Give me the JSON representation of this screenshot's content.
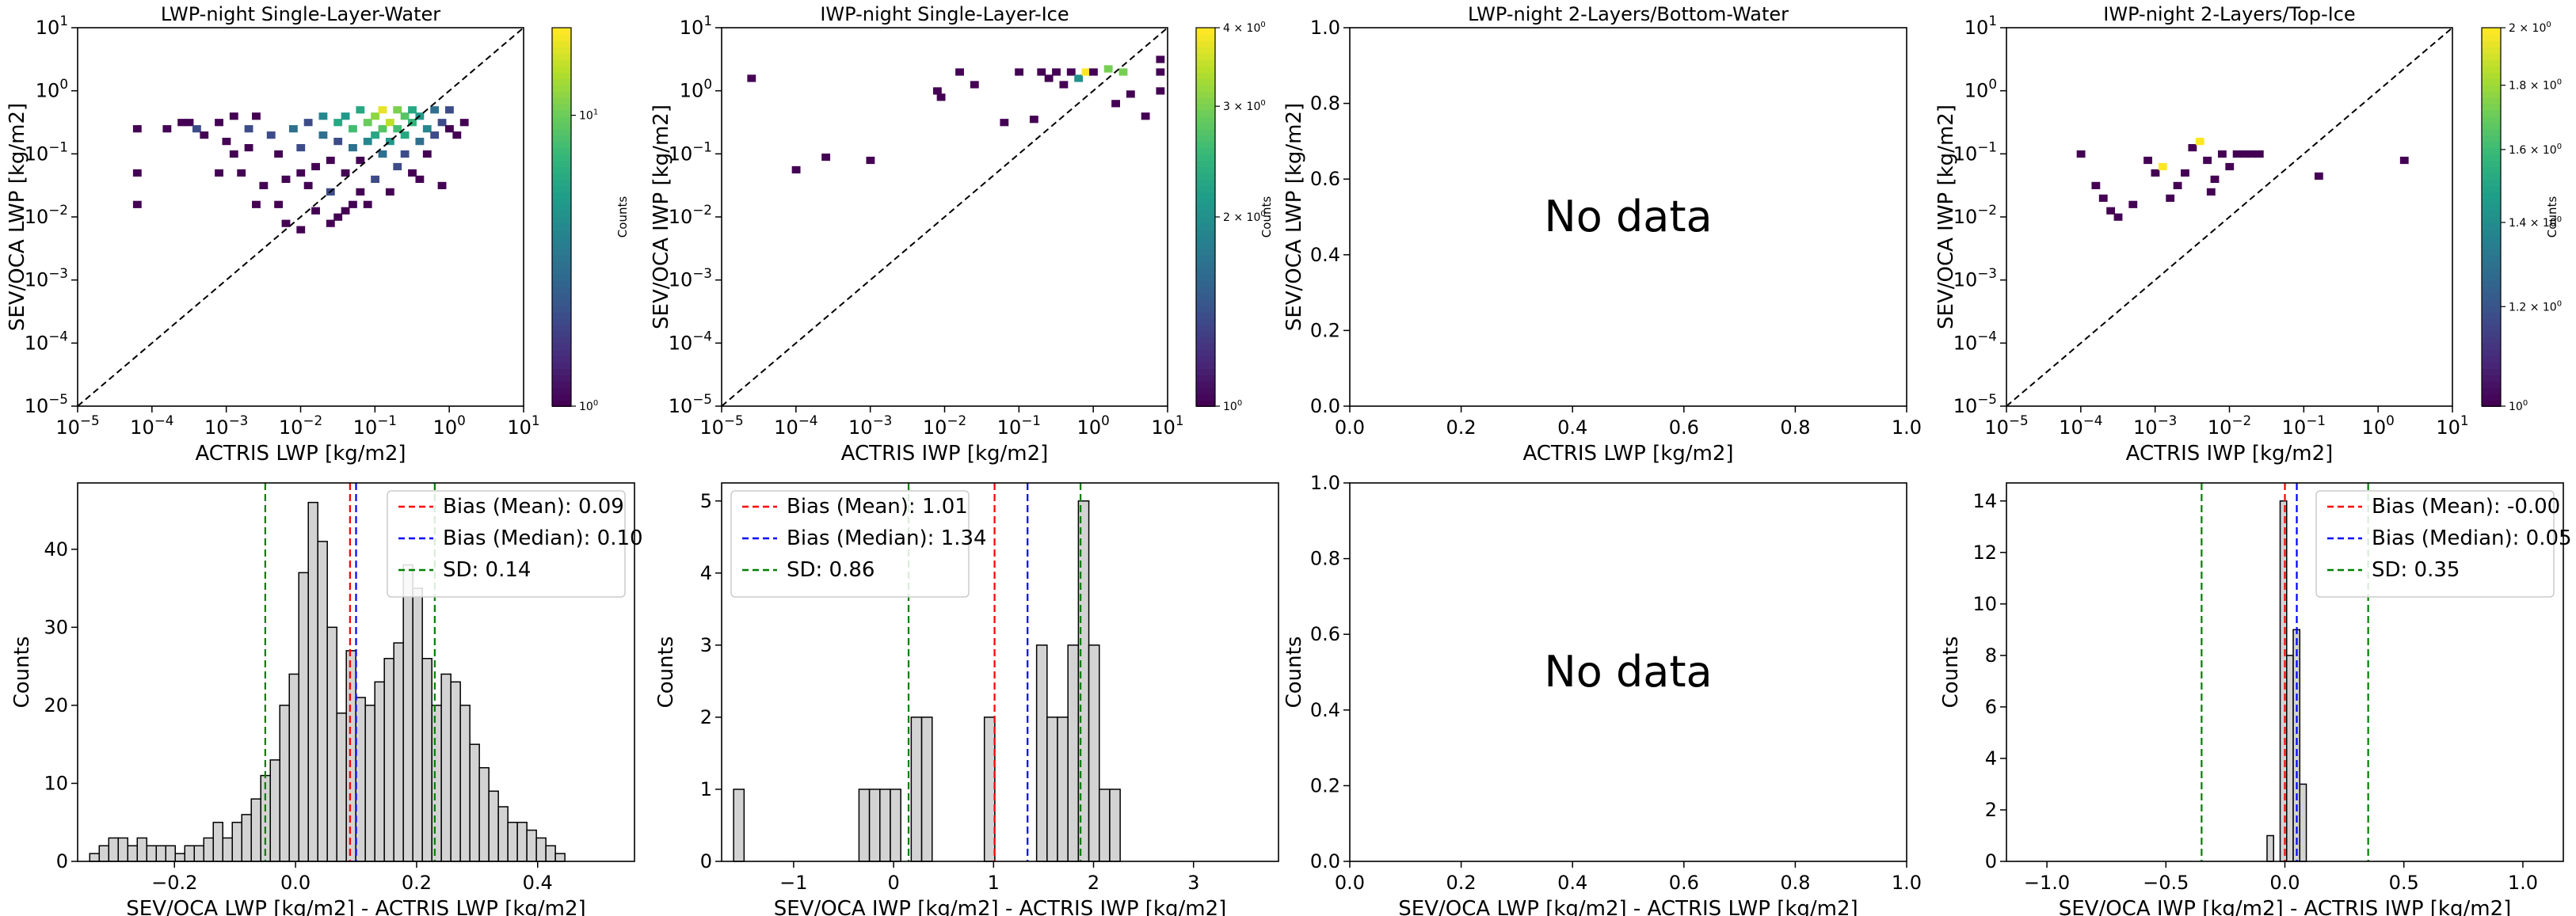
{
  "chart_data": [
    {
      "id": "p1",
      "type": "heatmap",
      "title": "LWP-night Single-Layer-Water",
      "xlabel": "ACTRIS LWP [kg/m2]",
      "ylabel": "SEV/OCA LWP [kg/m2]",
      "xscale": "log",
      "yscale": "log",
      "xlim": [
        1e-05,
        10
      ],
      "ylim": [
        1e-05,
        10
      ],
      "xticks": [
        "10^-5",
        "10^-4",
        "10^-3",
        "10^-2",
        "10^-1",
        "10^0",
        "10^1"
      ],
      "yticks": [
        "10^-5",
        "10^-4",
        "10^-3",
        "10^-2",
        "10^-1",
        "10^0",
        "10^1"
      ],
      "diagonal": true,
      "colorbar": {
        "label": "Counts",
        "scale": "log",
        "ticks": [
          "10^0",
          "10^1"
        ],
        "range": [
          1,
          20
        ]
      },
      "cells": [
        [
          -4.2,
          -0.6,
          1
        ],
        [
          -4.2,
          -1.8,
          1
        ],
        [
          -4.2,
          -1.3,
          1
        ],
        [
          -3.8,
          -0.6,
          1
        ],
        [
          -3.6,
          -0.5,
          1
        ],
        [
          -3.5,
          -0.5,
          1
        ],
        [
          -3.4,
          -0.6,
          2
        ],
        [
          -3.3,
          -0.7,
          1
        ],
        [
          -3.1,
          -1.3,
          1
        ],
        [
          -3,
          -0.8,
          1
        ],
        [
          -2.9,
          -1.0,
          1
        ],
        [
          -2.8,
          -1.3,
          1
        ],
        [
          -2.7,
          -0.9,
          1
        ],
        [
          -2.7,
          -0.6,
          2
        ],
        [
          -2.6,
          -1.8,
          1
        ],
        [
          -2.5,
          -1.5,
          1
        ],
        [
          -2.4,
          -0.7,
          2
        ],
        [
          -2.3,
          -1.0,
          1
        ],
        [
          -2.3,
          -1.8,
          1
        ],
        [
          -2.2,
          -1.4,
          1
        ],
        [
          -2.1,
          -0.6,
          3
        ],
        [
          -2,
          -0.9,
          2
        ],
        [
          -2,
          -2.2,
          1
        ],
        [
          -1.9,
          -1.5,
          1
        ],
        [
          -1.9,
          -0.5,
          2
        ],
        [
          -1.8,
          -1.2,
          1
        ],
        [
          -1.8,
          -1.9,
          1
        ],
        [
          -1.7,
          -0.4,
          4
        ],
        [
          -1.7,
          -0.7,
          3
        ],
        [
          -1.6,
          -1.1,
          1
        ],
        [
          -1.6,
          -1.6,
          2
        ],
        [
          -1.5,
          -0.5,
          6
        ],
        [
          -1.5,
          -0.8,
          2
        ],
        [
          -1.5,
          -2.0,
          1
        ],
        [
          -1.4,
          -0.4,
          5
        ],
        [
          -1.4,
          -1.3,
          1
        ],
        [
          -1.3,
          -0.6,
          8
        ],
        [
          -1.3,
          -0.9,
          3
        ],
        [
          -1.3,
          -1.8,
          1
        ],
        [
          -1.2,
          -0.3,
          6
        ],
        [
          -1.2,
          -1.1,
          1
        ],
        [
          -1.2,
          -1.6,
          1
        ],
        [
          -1.1,
          -0.5,
          10
        ],
        [
          -1.1,
          -0.8,
          4
        ],
        [
          -1.0,
          -0.4,
          12
        ],
        [
          -1.0,
          -0.7,
          6
        ],
        [
          -1.0,
          -1.4,
          2
        ],
        [
          -0.9,
          -0.3,
          18
        ],
        [
          -0.9,
          -0.6,
          9
        ],
        [
          -0.9,
          -1.0,
          3
        ],
        [
          -0.8,
          -0.5,
          15
        ],
        [
          -0.8,
          -0.8,
          5
        ],
        [
          -0.8,
          -1.6,
          1
        ],
        [
          -0.7,
          -0.3,
          11
        ],
        [
          -0.7,
          -0.6,
          8
        ],
        [
          -0.7,
          -1.2,
          2
        ],
        [
          -0.6,
          -0.4,
          9
        ],
        [
          -0.6,
          -0.7,
          6
        ],
        [
          -0.6,
          -1.0,
          2
        ],
        [
          -0.5,
          -0.3,
          6
        ],
        [
          -0.5,
          -0.5,
          7
        ],
        [
          -0.5,
          -1.3,
          1
        ],
        [
          -0.4,
          -0.4,
          5
        ],
        [
          -0.4,
          -0.8,
          3
        ],
        [
          -0.3,
          -0.6,
          4
        ],
        [
          -0.3,
          -1.0,
          1
        ],
        [
          -0.2,
          -0.3,
          3
        ],
        [
          -0.2,
          -0.7,
          2
        ],
        [
          -0.1,
          -0.5,
          2
        ],
        [
          -0.1,
          -1.5,
          1
        ],
        [
          0.0,
          -0.6,
          1
        ],
        [
          0.0,
          -0.3,
          2
        ],
        [
          0.1,
          -0.7,
          1
        ],
        [
          0.2,
          -0.5,
          1
        ],
        [
          -2.0,
          -1.3,
          1
        ],
        [
          -2.6,
          -0.4,
          1
        ],
        [
          -1.6,
          -2.1,
          1
        ],
        [
          -1.1,
          -1.8,
          1
        ],
        [
          -0.4,
          -1.4,
          1
        ],
        [
          -3.1,
          -0.5,
          1
        ],
        [
          -2.9,
          -0.4,
          1
        ],
        [
          -1.4,
          -1.9,
          1
        ],
        [
          -2.2,
          -2.1,
          1
        ]
      ]
    },
    {
      "id": "p2",
      "type": "heatmap",
      "title": "IWP-night Single-Layer-Ice",
      "xlabel": "ACTRIS IWP [kg/m2]",
      "ylabel": "SEV/OCA IWP [kg/m2]",
      "xscale": "log",
      "yscale": "log",
      "xlim": [
        1e-05,
        10
      ],
      "ylim": [
        1e-05,
        10
      ],
      "xticks": [
        "10^-5",
        "10^-4",
        "10^-3",
        "10^-2",
        "10^-1",
        "10^0",
        "10^1"
      ],
      "yticks": [
        "10^-5",
        "10^-4",
        "10^-3",
        "10^-2",
        "10^-1",
        "10^0",
        "10^1"
      ],
      "diagonal": true,
      "colorbar": {
        "label": "Counts",
        "scale": "log",
        "ticks": [
          "10^0",
          "2 × 10^0",
          "3 × 10^0",
          "4 × 10^0"
        ],
        "range": [
          1,
          4
        ]
      },
      "cells": [
        [
          -4.6,
          0.2,
          1
        ],
        [
          -4.0,
          -1.25,
          1
        ],
        [
          -3.6,
          -1.05,
          1
        ],
        [
          -3.0,
          -1.1,
          1
        ],
        [
          -2.1,
          0.0,
          1
        ],
        [
          -1.8,
          0.3,
          1
        ],
        [
          -1.6,
          0.1,
          1
        ],
        [
          -1.2,
          -0.5,
          1
        ],
        [
          -1.0,
          0.3,
          1
        ],
        [
          -0.8,
          -0.45,
          1
        ],
        [
          -0.7,
          0.3,
          1
        ],
        [
          -0.6,
          0.2,
          1
        ],
        [
          -0.5,
          0.3,
          1
        ],
        [
          -0.4,
          0.1,
          1
        ],
        [
          -0.3,
          0.3,
          1
        ],
        [
          -0.2,
          0.2,
          2
        ],
        [
          -0.1,
          0.3,
          4
        ],
        [
          0.0,
          0.3,
          1
        ],
        [
          0.2,
          0.35,
          3
        ],
        [
          0.3,
          -0.2,
          1
        ],
        [
          0.4,
          0.3,
          3
        ],
        [
          0.5,
          -0.05,
          1
        ],
        [
          0.7,
          -0.4,
          1
        ],
        [
          0.9,
          0.3,
          1
        ],
        [
          0.9,
          0.5,
          1
        ],
        [
          0.9,
          0.0,
          1
        ],
        [
          -2.05,
          -0.1,
          1
        ]
      ]
    },
    {
      "id": "p3",
      "type": "empty",
      "title": "LWP-night 2-Layers/Bottom-Water",
      "xlabel": "ACTRIS LWP [kg/m2]",
      "ylabel": "SEV/OCA LWP [kg/m2]",
      "xlim": [
        0,
        1
      ],
      "ylim": [
        0,
        1
      ],
      "xticks": [
        "0.0",
        "0.2",
        "0.4",
        "0.6",
        "0.8",
        "1.0"
      ],
      "yticks": [
        "0.0",
        "0.2",
        "0.4",
        "0.6",
        "0.8",
        "1.0"
      ],
      "message": "No data"
    },
    {
      "id": "p4",
      "type": "heatmap",
      "title": "IWP-night 2-Layers/Top-Ice",
      "xlabel": "ACTRIS IWP [kg/m2]",
      "ylabel": "SEV/OCA IWP [kg/m2]",
      "xscale": "log",
      "yscale": "log",
      "xlim": [
        1e-05,
        10
      ],
      "ylim": [
        1e-05,
        10
      ],
      "xticks": [
        "10^-5",
        "10^-4",
        "10^-3",
        "10^-2",
        "10^-1",
        "10^0",
        "10^1"
      ],
      "yticks": [
        "10^-5",
        "10^-4",
        "10^-3",
        "10^-2",
        "10^-1",
        "10^0",
        "10^1"
      ],
      "diagonal": true,
      "colorbar": {
        "label": "Counts",
        "scale": "log",
        "ticks": [
          "10^0",
          "1.2 × 10^0",
          "1.4 × 10^0",
          "1.6 × 10^0",
          "1.8 × 10^0",
          "2 × 10^0"
        ],
        "range": [
          1,
          2
        ]
      },
      "cells": [
        [
          -4.0,
          -1.0,
          1
        ],
        [
          -3.8,
          -1.5,
          1
        ],
        [
          -3.7,
          -1.7,
          1
        ],
        [
          -3.6,
          -1.9,
          1
        ],
        [
          -3.5,
          -2.0,
          1
        ],
        [
          -3.3,
          -1.8,
          1
        ],
        [
          -3.1,
          -1.1,
          1
        ],
        [
          -3.0,
          -1.3,
          1
        ],
        [
          -2.9,
          -1.2,
          2
        ],
        [
          -2.8,
          -1.7,
          1
        ],
        [
          -2.7,
          -1.5,
          1
        ],
        [
          -2.6,
          -1.3,
          1
        ],
        [
          -2.5,
          -0.9,
          1
        ],
        [
          -2.4,
          -0.8,
          2
        ],
        [
          -2.3,
          -1.1,
          1
        ],
        [
          -2.2,
          -1.4,
          1
        ],
        [
          -2.1,
          -1.0,
          1
        ],
        [
          -2.0,
          -1.2,
          1
        ],
        [
          -1.9,
          -1.0,
          1
        ],
        [
          -1.8,
          -1.0,
          1
        ],
        [
          -1.7,
          -1.0,
          1
        ],
        [
          -1.6,
          -1.0,
          1
        ],
        [
          -0.8,
          -1.35,
          1
        ],
        [
          0.35,
          -1.1,
          1
        ],
        [
          -2.25,
          -1.6,
          1
        ]
      ]
    },
    {
      "id": "p5",
      "type": "bar",
      "xlabel": "SEV/OCA LWP [kg/m2] - ACTRIS LWP [kg/m2]",
      "ylabel": "Counts",
      "xlim": [
        -0.36,
        0.56
      ],
      "ylim": [
        0,
        48.5
      ],
      "xticks": [
        -0.2,
        0.0,
        0.2,
        0.4
      ],
      "yticks": [
        0,
        10,
        20,
        30,
        40
      ],
      "bin_start": -0.34,
      "bin_width": 0.0157,
      "values": [
        1,
        2,
        3,
        3,
        2,
        3,
        2,
        2,
        2,
        1,
        2,
        2,
        3,
        5,
        3,
        5,
        6,
        8,
        11,
        13,
        20,
        24,
        37,
        46,
        41,
        30,
        19,
        27,
        21,
        20,
        23,
        26,
        28,
        38,
        35,
        26,
        20,
        24,
        23,
        20,
        15,
        12,
        9,
        7,
        5,
        5,
        4,
        3,
        2,
        1,
        0,
        0,
        0,
        0,
        0,
        0
      ],
      "lines": [
        {
          "label": "Bias (Mean): 0.09",
          "value": 0.09,
          "color": "#ff0000"
        },
        {
          "label": "Bias (Median): 0.10",
          "value": 0.1,
          "color": "#0000ff"
        },
        {
          "label": "SD: 0.14",
          "value": -0.05,
          "color": "#008000"
        },
        {
          "value": 0.23,
          "color": "#008000"
        }
      ],
      "legend": "top-right"
    },
    {
      "id": "p6",
      "type": "bar",
      "xlabel": "SEV/OCA IWP [kg/m2] - ACTRIS IWP [kg/m2]",
      "ylabel": "Counts",
      "xlim": [
        -1.72,
        3.85
      ],
      "ylim": [
        0,
        5.25
      ],
      "xticks": [
        -1,
        0,
        1,
        2,
        3
      ],
      "yticks": [
        0,
        1,
        2,
        3,
        4,
        5
      ],
      "bin_start": -1.6,
      "bin_width": 0.1045,
      "values": [
        1,
        0,
        0,
        0,
        0,
        0,
        0,
        0,
        0,
        0,
        0,
        0,
        1,
        1,
        1,
        1,
        0,
        2,
        2,
        0,
        0,
        0,
        0,
        0,
        2,
        0,
        0,
        0,
        0,
        3,
        2,
        2,
        3,
        5,
        3,
        1,
        1,
        0,
        0,
        0,
        0,
        0,
        0,
        0,
        0,
        0,
        0,
        0,
        0,
        0,
        0,
        0
      ],
      "lines": [
        {
          "label": "Bias (Mean): 1.01",
          "value": 1.01,
          "color": "#ff0000"
        },
        {
          "label": "Bias (Median): 1.34",
          "value": 1.34,
          "color": "#0000ff"
        },
        {
          "label": "SD: 0.86",
          "value": 0.15,
          "color": "#008000"
        },
        {
          "value": 1.87,
          "color": "#008000"
        }
      ],
      "legend": "top-left"
    },
    {
      "id": "p7",
      "type": "empty",
      "xlabel": "SEV/OCA LWP [kg/m2] - ACTRIS LWP [kg/m2]",
      "ylabel": "Counts",
      "xlim": [
        0,
        1
      ],
      "ylim": [
        0,
        1
      ],
      "xticks": [
        "0.0",
        "0.2",
        "0.4",
        "0.6",
        "0.8",
        "1.0"
      ],
      "yticks": [
        "0.0",
        "0.2",
        "0.4",
        "0.6",
        "0.8",
        "1.0"
      ],
      "message": "No data"
    },
    {
      "id": "p8",
      "type": "bar",
      "xlabel": "SEV/OCA IWP [kg/m2] - ACTRIS IWP [kg/m2]",
      "ylabel": "Counts",
      "xlim": [
        -1.17,
        1.17
      ],
      "ylim": [
        0,
        14.7
      ],
      "xticks": [
        -1.0,
        -0.5,
        0.0,
        0.5,
        1.0
      ],
      "yticks": [
        0,
        2,
        4,
        6,
        8,
        10,
        12,
        14
      ],
      "bin_start": -0.075,
      "bin_width": 0.0275,
      "values": [
        1,
        0,
        14,
        8,
        9,
        3
      ],
      "lines": [
        {
          "label": "Bias (Mean): -0.00",
          "value": 0.0,
          "color": "#ff0000"
        },
        {
          "label": "Bias (Median): 0.05",
          "value": 0.05,
          "color": "#0000ff"
        },
        {
          "label": "SD: 0.35",
          "value": -0.35,
          "color": "#008000"
        },
        {
          "value": 0.35,
          "color": "#008000"
        }
      ],
      "legend": "top-right"
    }
  ]
}
